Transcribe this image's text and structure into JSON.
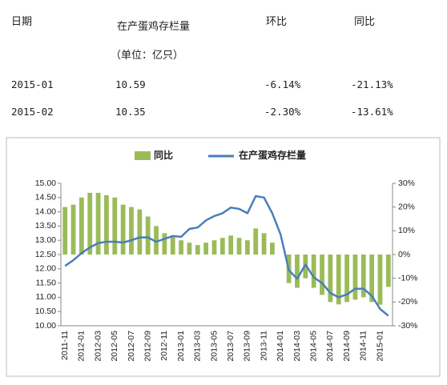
{
  "table": {
    "header": [
      "日期",
      "在产蛋鸡存栏量",
      "环比",
      "同比"
    ],
    "unit": "（单位：亿只）",
    "rows": [
      [
        "2015-01",
        "10.59",
        "-6.14%",
        "-21.13%"
      ],
      [
        "2015-02",
        "10.35",
        "-2.30%",
        "-13.61%"
      ]
    ]
  },
  "chart_data": {
    "type": "combo",
    "categories": [
      "2011-11",
      null,
      "2012-01",
      null,
      "2012-03",
      null,
      "2012-05",
      null,
      "2012-07",
      null,
      "2012-09",
      null,
      "2012-11",
      null,
      "2013-01",
      null,
      "2013-03",
      null,
      "2013-05",
      null,
      "2013-07",
      null,
      "2013-09",
      null,
      "2013-11",
      null,
      "2014-01",
      null,
      "2014-03",
      null,
      "2014-05",
      null,
      "2014-07",
      null,
      "2014-09",
      null,
      "2014-11",
      null,
      "2015-01",
      null
    ],
    "series": [
      {
        "name": "同比",
        "type": "bar",
        "axis": "y2",
        "color": "#9bbb59",
        "values": [
          20,
          21,
          24,
          26,
          26,
          25,
          24,
          21,
          20,
          19,
          16,
          12,
          9,
          8,
          6,
          5,
          4,
          5,
          6,
          7,
          8,
          7,
          6,
          11,
          9,
          5,
          0,
          -12,
          -14,
          -10,
          -14,
          -17,
          -20,
          -21,
          -20,
          -19,
          -18,
          -20,
          -21.13,
          -13.61
        ]
      },
      {
        "name": "在产蛋鸡存栏量",
        "type": "line",
        "color": "#4a7ebb",
        "values": [
          12.1,
          12.3,
          12.55,
          12.75,
          12.9,
          12.95,
          12.95,
          12.92,
          13.0,
          13.1,
          13.1,
          12.95,
          13.05,
          13.15,
          13.12,
          13.4,
          13.45,
          13.7,
          13.85,
          13.95,
          14.15,
          14.1,
          13.95,
          14.55,
          14.5,
          13.95,
          13.2,
          11.95,
          11.65,
          12.15,
          11.7,
          11.5,
          11.15,
          11.0,
          11.1,
          11.3,
          11.3,
          11.05,
          10.59,
          10.35
        ]
      }
    ],
    "ylim": [
      10,
      15
    ],
    "yticks": [
      {
        "value": 10,
        "label": "10.00"
      },
      {
        "value": 10.5,
        "label": "10.50"
      },
      {
        "value": 11,
        "label": "11.00"
      },
      {
        "value": 11.5,
        "label": "11.50"
      },
      {
        "value": 12,
        "label": "12.00"
      },
      {
        "value": 12.5,
        "label": "12.50"
      },
      {
        "value": 13,
        "label": "13.00"
      },
      {
        "value": 13.5,
        "label": "13.50"
      },
      {
        "value": 14,
        "label": "14.00"
      },
      {
        "value": 14.5,
        "label": "14.50"
      },
      {
        "value": 15,
        "label": "15.00"
      }
    ],
    "y2lim": [
      -30,
      30
    ],
    "y2ticks": [
      {
        "value": -30,
        "label": "-30%"
      },
      {
        "value": -20,
        "label": "-20%"
      },
      {
        "value": -10,
        "label": "-10%"
      },
      {
        "value": 0,
        "label": "0%"
      },
      {
        "value": 10,
        "label": "10%"
      },
      {
        "value": 20,
        "label": "20%"
      },
      {
        "value": 30,
        "label": "30%"
      }
    ]
  }
}
